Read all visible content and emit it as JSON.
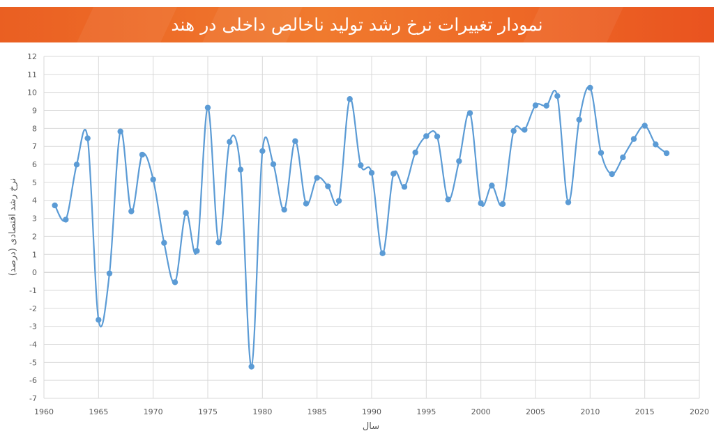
{
  "header": {
    "title": "نمودار تغییرات نرخ رشد تولید ناخالص داخلی در  هند"
  },
  "colors": {
    "banner": "#ef6c27",
    "series": "#5b9bd5",
    "grid": "#d9d9d9",
    "zero_line": "#bfbfbf"
  },
  "chart_data": {
    "type": "line",
    "title": "نمودار تغییرات نرخ رشد تولید ناخالص داخلی در  هند",
    "xlabel": "سال",
    "ylabel": "نرخ رشد اقتصادی (درصد)",
    "xlim": [
      1960,
      2020
    ],
    "ylim": [
      -7,
      12
    ],
    "x_ticks": [
      "1960",
      "1965",
      "1970",
      "1975",
      "1980",
      "1985",
      "1990",
      "1995",
      "2000",
      "2005",
      "2010",
      "2015",
      "2020"
    ],
    "y_ticks": [
      "12",
      "11",
      "10",
      "9",
      "8",
      "7",
      "6",
      "5",
      "4",
      "3",
      "2",
      "1",
      "0",
      "-1",
      "-2",
      "-3",
      "-4",
      "-5",
      "-6",
      "-7"
    ],
    "grid": true,
    "smooth": true,
    "series": [
      {
        "name": "",
        "x": [
          1961,
          1962,
          1963,
          1964,
          1965,
          1966,
          1967,
          1968,
          1969,
          1970,
          1971,
          1972,
          1973,
          1974,
          1975,
          1976,
          1977,
          1978,
          1979,
          1980,
          1981,
          1982,
          1983,
          1984,
          1985,
          1986,
          1987,
          1988,
          1989,
          1990,
          1991,
          1992,
          1993,
          1994,
          1995,
          1996,
          1997,
          1998,
          1999,
          2000,
          2001,
          2002,
          2003,
          2004,
          2005,
          2006,
          2007,
          2008,
          2009,
          2010,
          2011,
          2012,
          2013,
          2014,
          2015,
          2016,
          2017
        ],
        "y": [
          3.72,
          2.93,
          5.99,
          7.45,
          -2.64,
          -0.06,
          7.83,
          3.39,
          6.54,
          5.16,
          1.64,
          -0.55,
          3.3,
          1.19,
          9.15,
          1.66,
          7.25,
          5.71,
          -5.24,
          6.74,
          6.01,
          3.48,
          7.29,
          3.82,
          5.25,
          4.78,
          3.97,
          9.63,
          5.95,
          5.53,
          1.06,
          5.48,
          4.75,
          6.66,
          7.57,
          7.55,
          4.05,
          6.18,
          8.85,
          3.84,
          4.82,
          3.8,
          7.86,
          7.92,
          9.28,
          9.26,
          9.8,
          3.89,
          8.48,
          10.26,
          6.64,
          5.46,
          6.39,
          7.41,
          8.15,
          7.11,
          6.62
        ]
      }
    ]
  }
}
